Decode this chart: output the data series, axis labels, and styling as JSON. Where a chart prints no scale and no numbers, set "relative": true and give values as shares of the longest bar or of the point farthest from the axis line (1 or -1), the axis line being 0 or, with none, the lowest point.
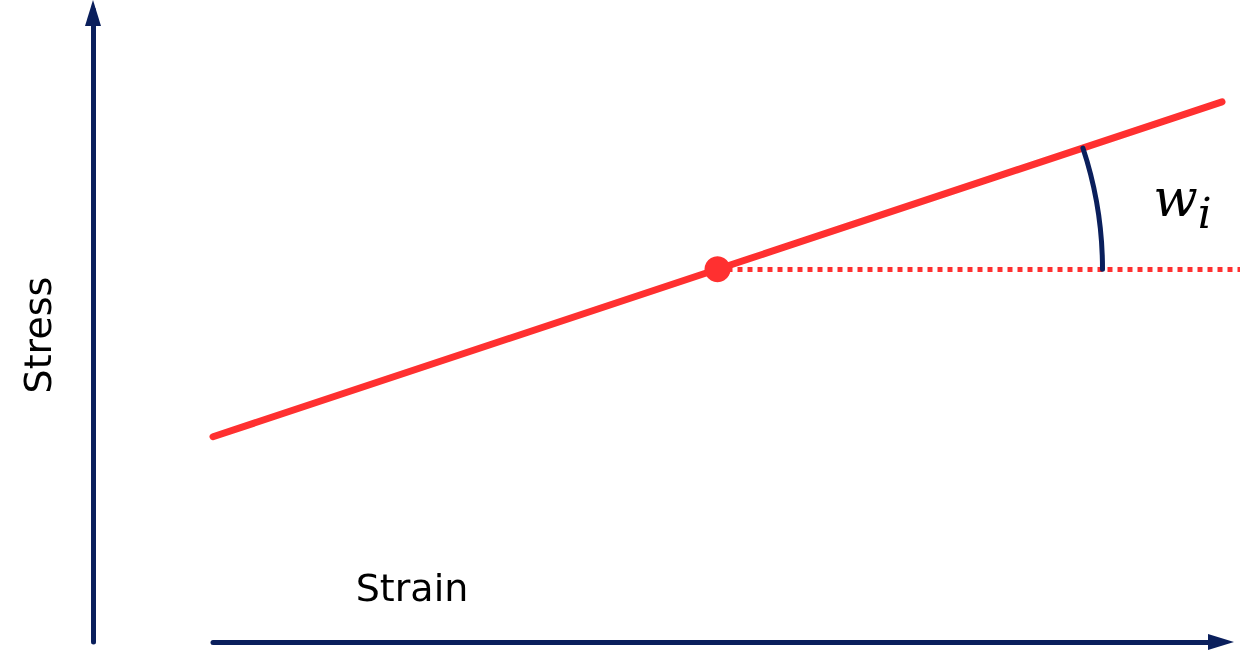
{
  "chart_data": {
    "type": "line",
    "relative": true,
    "xlabel": "Strain",
    "ylabel": "Stress",
    "categories": [
      null,
      null,
      null
    ],
    "series": [
      {
        "color": "#ff3030",
        "values": [
          0.38,
          0.69,
          1
        ]
      }
    ],
    "marker": "none",
    "ref_lines": [
      {
        "axis": "y",
        "value": 0.69,
        "color": "#ff3030",
        "line_style": "dotted"
      }
    ],
    "annotations": [
      "w$_{i}$"
    ]
  }
}
